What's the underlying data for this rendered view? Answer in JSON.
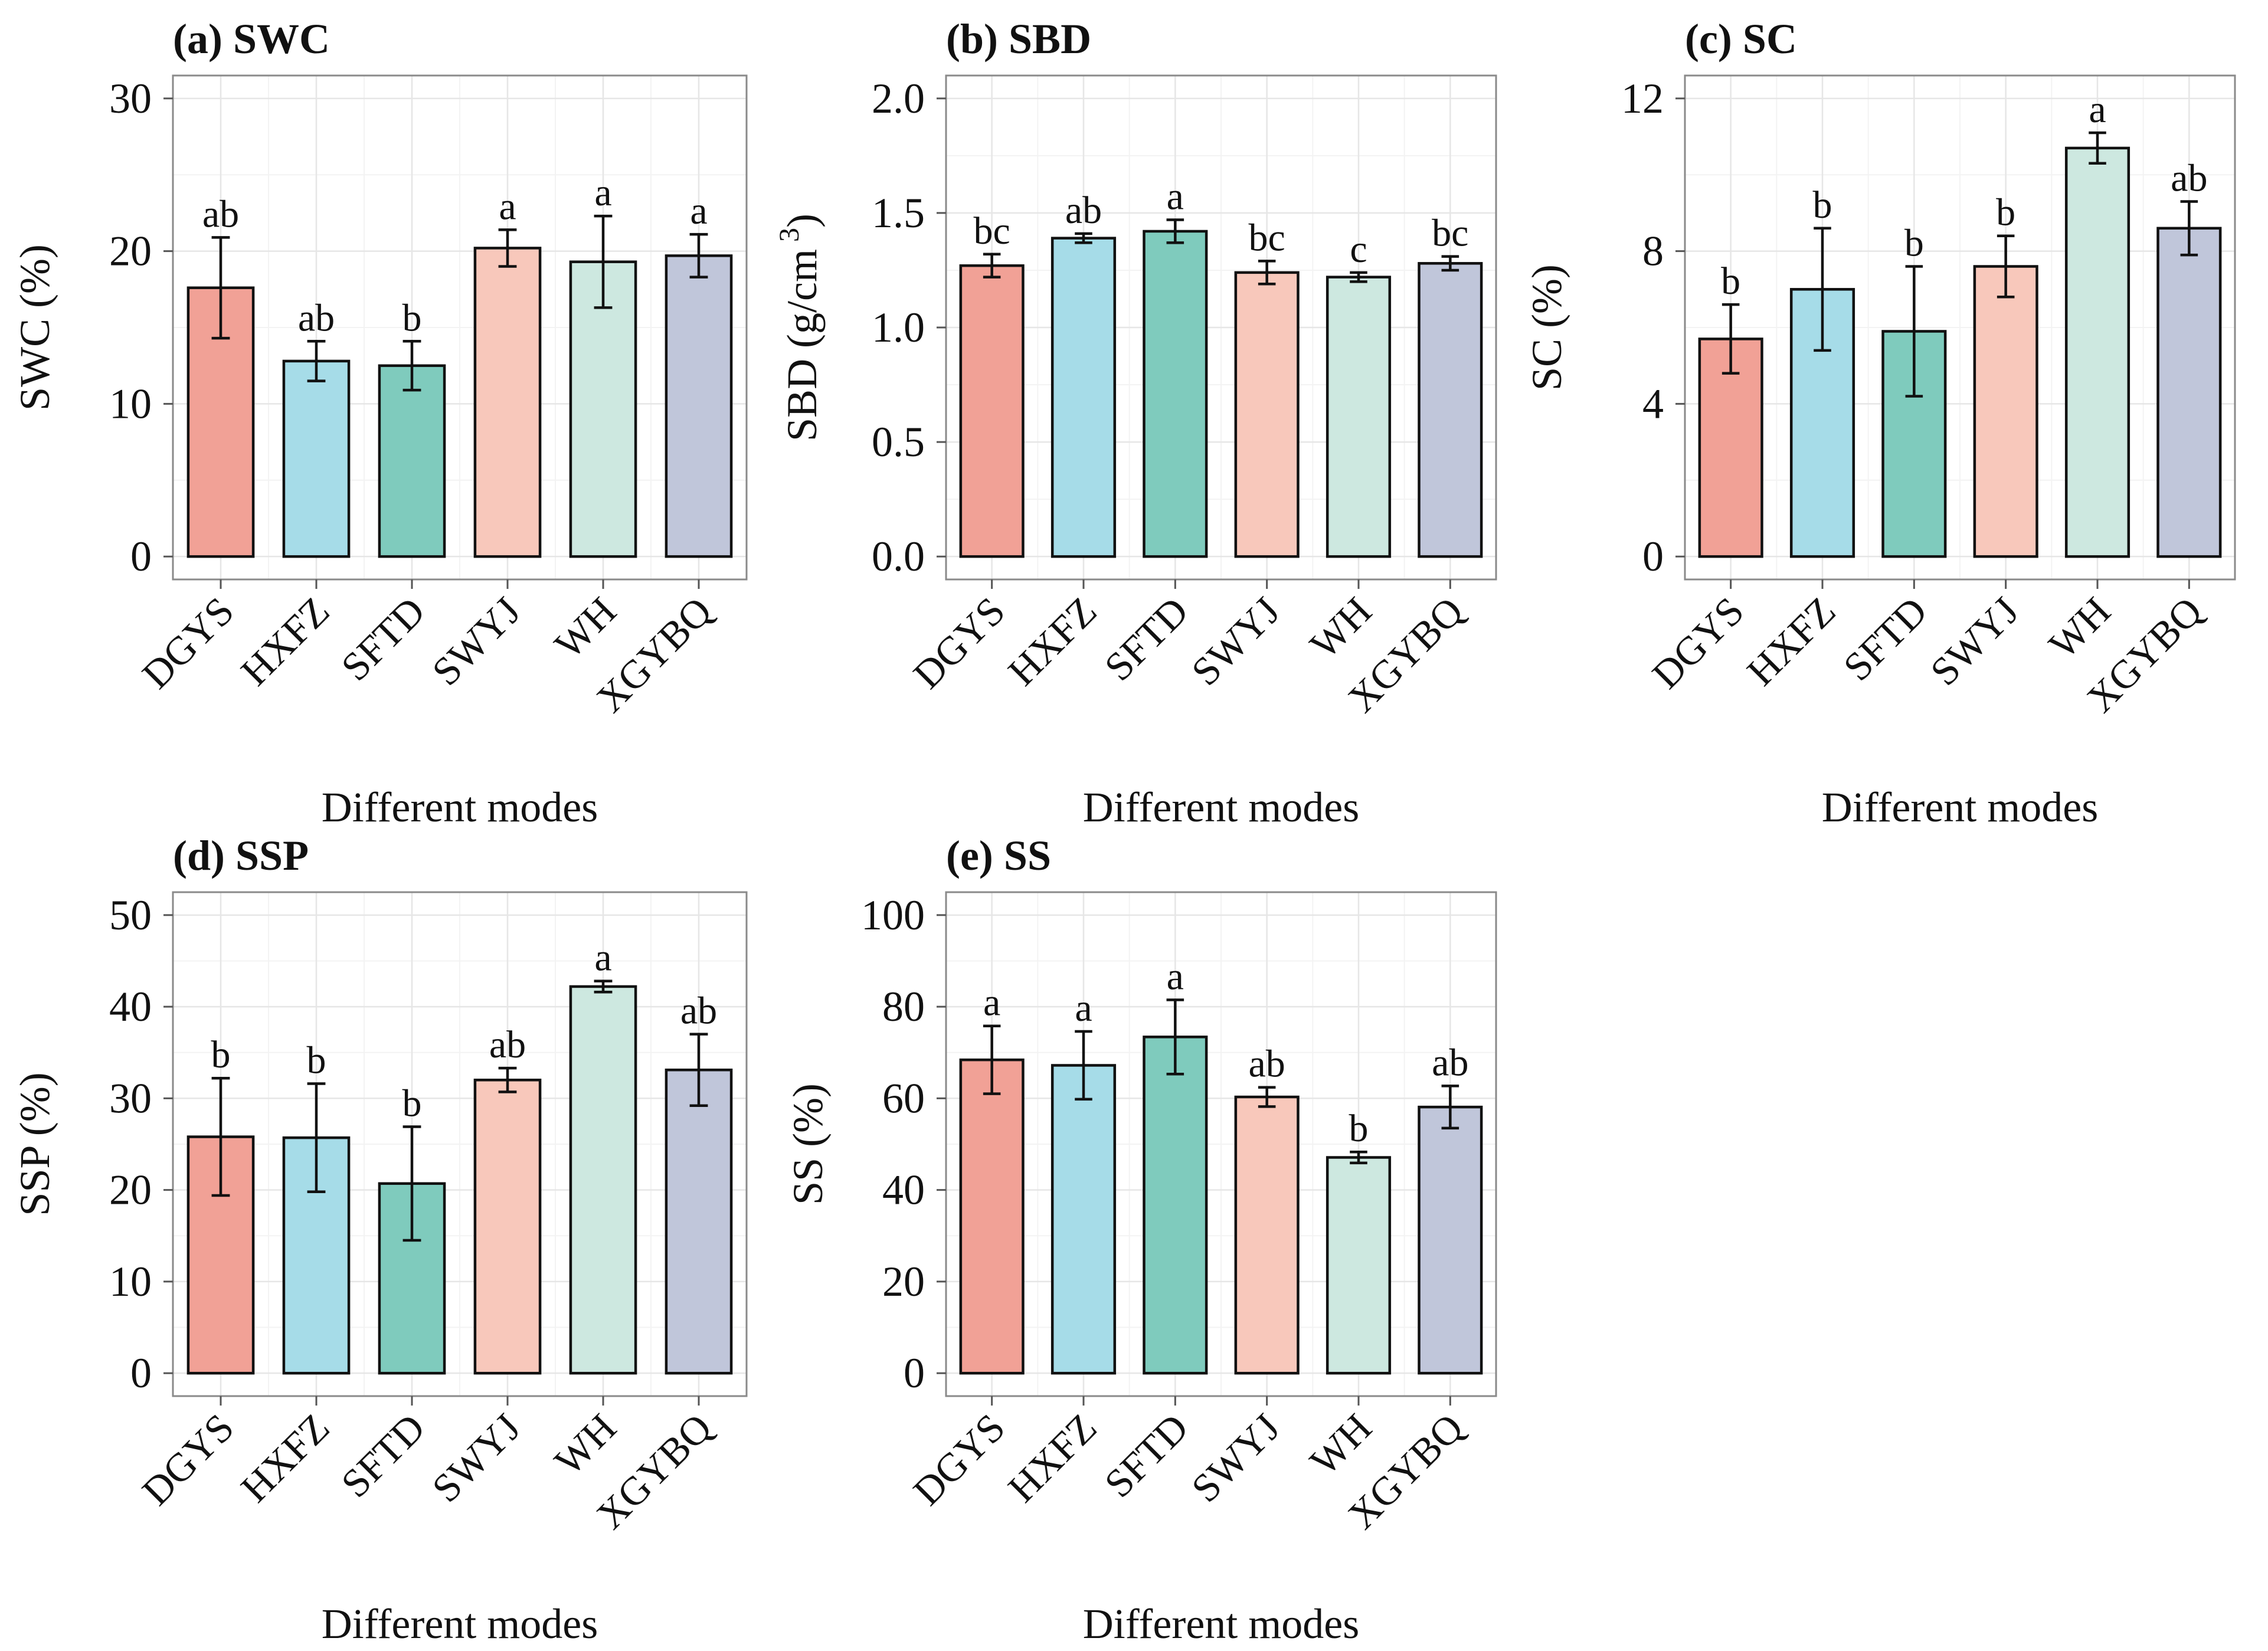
{
  "figure": {
    "x_axis_title": "Different modes"
  },
  "chart_data": [
    {
      "type": "bar",
      "title": "(a) SWC",
      "xlabel": "Different modes",
      "ylabel": "SWC (%)",
      "categories": [
        "DGYS",
        "HXFZ",
        "SFTD",
        "SWYJ",
        "WH",
        "XGYBQ"
      ],
      "values": [
        17.6,
        12.8,
        12.5,
        20.2,
        19.3,
        19.7
      ],
      "errors": [
        3.3,
        1.3,
        1.6,
        1.2,
        3.0,
        1.4
      ],
      "significance": [
        "ab",
        "ab",
        "b",
        "a",
        "a",
        "a"
      ],
      "colors": [
        "#f1a196",
        "#a6dce8",
        "#7fcbbd",
        "#f8c8bb",
        "#cde8e0",
        "#c0c6da"
      ],
      "ylim": [
        -1.5,
        31.5
      ],
      "yticks": [
        0,
        10,
        20,
        30
      ],
      "ytick_labels": [
        "0",
        "10",
        "20",
        "30"
      ],
      "grid": true
    },
    {
      "type": "bar",
      "title": "(b) SBD",
      "xlabel": "Different modes",
      "ylabel": "SBD (g/cm",
      "ylabel_sup": "3",
      "ylabel_close": ")",
      "categories": [
        "DGYS",
        "HXFZ",
        "SFTD",
        "SWYJ",
        "WH",
        "XGYBQ"
      ],
      "values": [
        1.27,
        1.39,
        1.42,
        1.24,
        1.22,
        1.28
      ],
      "errors": [
        0.05,
        0.02,
        0.05,
        0.05,
        0.02,
        0.03
      ],
      "significance": [
        "bc",
        "ab",
        "a",
        "bc",
        "c",
        "bc"
      ],
      "colors": [
        "#f1a196",
        "#a6dce8",
        "#7fcbbd",
        "#f8c8bb",
        "#cde8e0",
        "#c0c6da"
      ],
      "ylim": [
        -0.1,
        2.1
      ],
      "yticks": [
        0,
        0.5,
        1,
        1.5,
        2
      ],
      "ytick_labels": [
        "0.0",
        "0.5",
        "1.0",
        "1.5",
        "2.0"
      ],
      "grid": true
    },
    {
      "type": "bar",
      "title": "(c) SC",
      "xlabel": "Different modes",
      "ylabel": "SC (%)",
      "categories": [
        "DGYS",
        "HXFZ",
        "SFTD",
        "SWYJ",
        "WH",
        "XGYBQ"
      ],
      "values": [
        5.7,
        7.0,
        5.9,
        7.6,
        10.7,
        8.6
      ],
      "errors": [
        0.9,
        1.6,
        1.7,
        0.8,
        0.4,
        0.7
      ],
      "significance": [
        "b",
        "b",
        "b",
        "b",
        "a",
        "ab"
      ],
      "colors": [
        "#f1a196",
        "#a6dce8",
        "#7fcbbd",
        "#f8c8bb",
        "#cde8e0",
        "#c0c6da"
      ],
      "ylim": [
        -0.6,
        12.6
      ],
      "yticks": [
        0,
        4,
        8,
        12
      ],
      "ytick_labels": [
        "0",
        "4",
        "8",
        "12"
      ],
      "grid": true
    },
    {
      "type": "bar",
      "title": "(d) SSP",
      "xlabel": "Different modes",
      "ylabel": "SSP (%)",
      "categories": [
        "DGYS",
        "HXFZ",
        "SFTD",
        "SWYJ",
        "WH",
        "XGYBQ"
      ],
      "values": [
        25.8,
        25.7,
        20.7,
        32.0,
        42.2,
        33.1
      ],
      "errors": [
        6.4,
        5.9,
        6.2,
        1.3,
        0.6,
        3.9
      ],
      "significance": [
        "b",
        "b",
        "b",
        "ab",
        "a",
        "ab"
      ],
      "colors": [
        "#f1a196",
        "#a6dce8",
        "#7fcbbd",
        "#f8c8bb",
        "#cde8e0",
        "#c0c6da"
      ],
      "ylim": [
        -2.5,
        52.5
      ],
      "yticks": [
        0,
        10,
        20,
        30,
        40,
        50
      ],
      "ytick_labels": [
        "0",
        "10",
        "20",
        "30",
        "40",
        "50"
      ],
      "grid": true
    },
    {
      "type": "bar",
      "title": "(e) SS",
      "xlabel": "Different modes",
      "ylabel": "SS (%)",
      "categories": [
        "DGYS",
        "HXFZ",
        "SFTD",
        "SWYJ",
        "WH",
        "XGYBQ"
      ],
      "values": [
        68.4,
        67.2,
        73.4,
        60.3,
        47.1,
        58.1
      ],
      "errors": [
        7.4,
        7.4,
        8.1,
        2.1,
        1.2,
        4.6
      ],
      "significance": [
        "a",
        "a",
        "a",
        "ab",
        "b",
        "ab"
      ],
      "colors": [
        "#f1a196",
        "#a6dce8",
        "#7fcbbd",
        "#f8c8bb",
        "#cde8e0",
        "#c0c6da"
      ],
      "ylim": [
        -5,
        105
      ],
      "yticks": [
        0,
        20,
        40,
        60,
        80,
        100
      ],
      "ytick_labels": [
        "0",
        "20",
        "40",
        "60",
        "80",
        "100"
      ],
      "grid": true
    }
  ]
}
